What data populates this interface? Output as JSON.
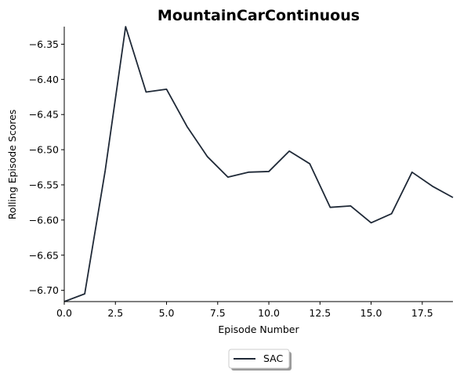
{
  "chart_data": {
    "type": "line",
    "title": "MountainCarContinuous",
    "xlabel": "Episode Number",
    "ylabel": "Rolling Episode Scores",
    "xlim": [
      0,
      19
    ],
    "ylim": [
      -6.716,
      -6.325
    ],
    "xticks": [
      0.0,
      2.5,
      5.0,
      7.5,
      10.0,
      12.5,
      15.0,
      17.5
    ],
    "xtick_labels": [
      "0.0",
      "2.5",
      "5.0",
      "7.5",
      "10.0",
      "12.5",
      "15.0",
      "17.5"
    ],
    "yticks": [
      -6.35,
      -6.4,
      -6.45,
      -6.5,
      -6.55,
      -6.6,
      -6.65,
      -6.7
    ],
    "ytick_labels": [
      "−6.35",
      "−6.40",
      "−6.45",
      "−6.50",
      "−6.55",
      "−6.60",
      "−6.65",
      "−6.70"
    ],
    "grid": false,
    "legend_position": "bottom-center",
    "series": [
      {
        "name": "SAC",
        "color": "#1f2937",
        "x": [
          0,
          1,
          2,
          3,
          4,
          5,
          6,
          7,
          8,
          9,
          10,
          11,
          12,
          13,
          14,
          15,
          16,
          17,
          18,
          19
        ],
        "y": [
          -6.716,
          -6.705,
          -6.53,
          -6.325,
          -6.418,
          -6.414,
          -6.467,
          -6.51,
          -6.539,
          -6.532,
          -6.531,
          -6.502,
          -6.52,
          -6.582,
          -6.58,
          -6.604,
          -6.591,
          -6.532,
          -6.552,
          -6.568
        ]
      }
    ]
  }
}
